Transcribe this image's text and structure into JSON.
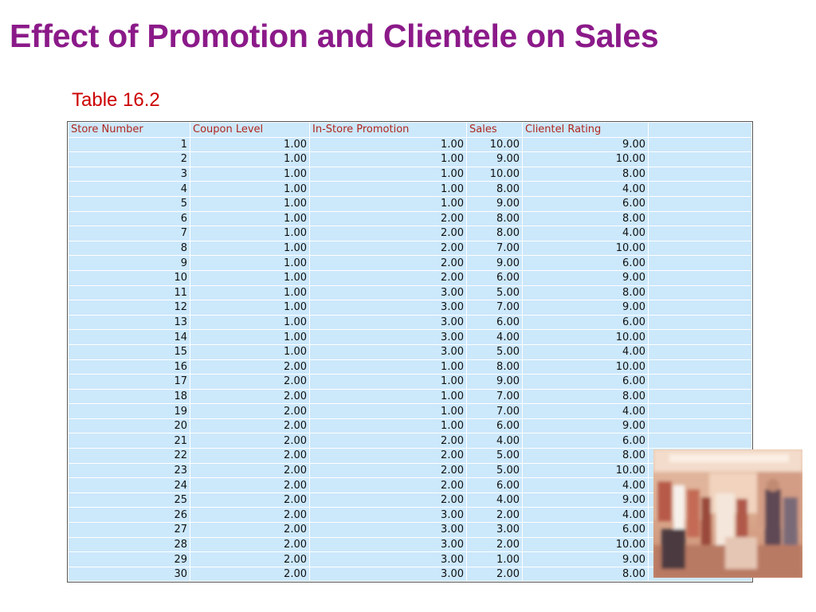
{
  "title": "Effect of Promotion and Clientele on Sales",
  "caption": "Table 16.2",
  "table": {
    "headers": [
      "Store Number",
      "Coupon Level",
      "In-Store Promotion",
      "Sales",
      "Clientel Rating",
      ""
    ],
    "rows": [
      [
        "1",
        "1.00",
        "1.00",
        "10.00",
        "9.00",
        ""
      ],
      [
        "2",
        "1.00",
        "1.00",
        "9.00",
        "10.00",
        ""
      ],
      [
        "3",
        "1.00",
        "1.00",
        "10.00",
        "8.00",
        ""
      ],
      [
        "4",
        "1.00",
        "1.00",
        "8.00",
        "4.00",
        ""
      ],
      [
        "5",
        "1.00",
        "1.00",
        "9.00",
        "6.00",
        ""
      ],
      [
        "6",
        "1.00",
        "2.00",
        "8.00",
        "8.00",
        ""
      ],
      [
        "7",
        "1.00",
        "2.00",
        "8.00",
        "4.00",
        ""
      ],
      [
        "8",
        "1.00",
        "2.00",
        "7.00",
        "10.00",
        ""
      ],
      [
        "9",
        "1.00",
        "2.00",
        "9.00",
        "6.00",
        ""
      ],
      [
        "10",
        "1.00",
        "2.00",
        "6.00",
        "9.00",
        ""
      ],
      [
        "11",
        "1.00",
        "3.00",
        "5.00",
        "8.00",
        ""
      ],
      [
        "12",
        "1.00",
        "3.00",
        "7.00",
        "9.00",
        ""
      ],
      [
        "13",
        "1.00",
        "3.00",
        "6.00",
        "6.00",
        ""
      ],
      [
        "14",
        "1.00",
        "3.00",
        "4.00",
        "10.00",
        ""
      ],
      [
        "15",
        "1.00",
        "3.00",
        "5.00",
        "4.00",
        ""
      ],
      [
        "16",
        "2.00",
        "1.00",
        "8.00",
        "10.00",
        ""
      ],
      [
        "17",
        "2.00",
        "1.00",
        "9.00",
        "6.00",
        ""
      ],
      [
        "18",
        "2.00",
        "1.00",
        "7.00",
        "8.00",
        ""
      ],
      [
        "19",
        "2.00",
        "1.00",
        "7.00",
        "4.00",
        ""
      ],
      [
        "20",
        "2.00",
        "1.00",
        "6.00",
        "9.00",
        ""
      ],
      [
        "21",
        "2.00",
        "2.00",
        "4.00",
        "6.00",
        ""
      ],
      [
        "22",
        "2.00",
        "2.00",
        "5.00",
        "8.00",
        ""
      ],
      [
        "23",
        "2.00",
        "2.00",
        "5.00",
        "10.00",
        ""
      ],
      [
        "24",
        "2.00",
        "2.00",
        "6.00",
        "4.00",
        ""
      ],
      [
        "25",
        "2.00",
        "2.00",
        "4.00",
        "9.00",
        ""
      ],
      [
        "26",
        "2.00",
        "3.00",
        "2.00",
        "4.00",
        ""
      ],
      [
        "27",
        "2.00",
        "3.00",
        "3.00",
        "6.00",
        ""
      ],
      [
        "28",
        "2.00",
        "3.00",
        "2.00",
        "10.00",
        ""
      ],
      [
        "29",
        "2.00",
        "3.00",
        "1.00",
        "9.00",
        ""
      ],
      [
        "30",
        "2.00",
        "3.00",
        "2.00",
        "8.00",
        ""
      ]
    ]
  },
  "colors": {
    "title": "#8B1A89",
    "caption": "#CC0000",
    "header_text": "#B0261E",
    "cell_bg": "#CCE8FB"
  },
  "photo": {
    "subject": "store-interior-shoppers-photo"
  }
}
